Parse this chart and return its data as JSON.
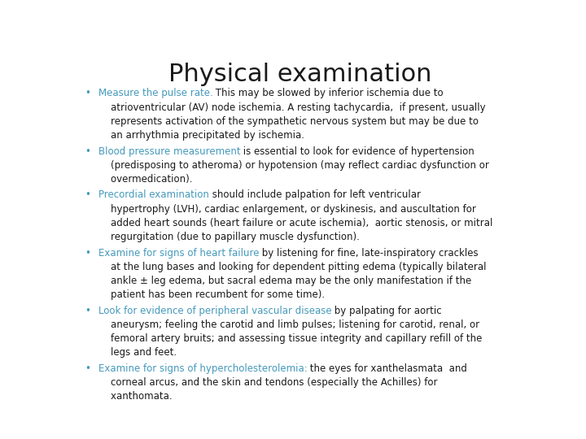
{
  "title": "Physical examination",
  "title_fontsize": 22,
  "title_color": "#1a1a1a",
  "bg_color": "#ffffff",
  "text_color": "#1a1a1a",
  "highlight_color": "#4499bb",
  "body_fontsize": 8.5,
  "font_family": "DejaVu Sans",
  "bullet_items": [
    {
      "highlight": "Measure the pulse rate.",
      "lines": [
        [
          [
            "Measure the pulse rate.",
            true
          ],
          [
            " This may be slowed by inferior ischemia due to",
            false
          ]
        ],
        [
          [
            "    atrioventricular (AV) node ischemia. A resting tachycardia,  if present, usually",
            false
          ]
        ],
        [
          [
            "    represents activation of the sympathetic nervous system but may be due to",
            false
          ]
        ],
        [
          [
            "    an arrhythmia precipitated by ischemia.",
            false
          ]
        ]
      ]
    },
    {
      "highlight": "Blood pressure measurement",
      "lines": [
        [
          [
            "Blood pressure measurement",
            true
          ],
          [
            " is essential to look for evidence of hypertension",
            false
          ]
        ],
        [
          [
            "    (predisposing to atheroma) or hypotension (may reflect cardiac dysfunction or",
            false
          ]
        ],
        [
          [
            "    overmedication).",
            false
          ]
        ]
      ]
    },
    {
      "highlight": "Precordial examination",
      "lines": [
        [
          [
            "Precordial examination",
            true
          ],
          [
            " should include palpation for left ventricular",
            false
          ]
        ],
        [
          [
            "    hypertrophy (LVH), cardiac enlargement, or dyskinesis, and auscultation for",
            false
          ]
        ],
        [
          [
            "    added heart sounds (heart failure or acute ischemia),  aortic stenosis, or mitral",
            false
          ]
        ],
        [
          [
            "    regurgitation (due to papillary muscle dysfunction).",
            false
          ]
        ]
      ]
    },
    {
      "highlight": "Examine for signs of heart failure",
      "lines": [
        [
          [
            "Examine for signs of heart failure",
            true
          ],
          [
            " by listening for fine, late-inspiratory crackles",
            false
          ]
        ],
        [
          [
            "    at the lung bases and looking for dependent pitting edema (typically bilateral",
            false
          ]
        ],
        [
          [
            "    ankle ± leg edema, but sacral edema may be the only manifestation if the",
            false
          ]
        ],
        [
          [
            "    patient has been recumbent for some time).",
            false
          ]
        ]
      ]
    },
    {
      "highlight": "Look for evidence of peripheral vascular disease",
      "lines": [
        [
          [
            "Look for evidence of peripheral vascular disease",
            true
          ],
          [
            " by palpating for aortic",
            false
          ]
        ],
        [
          [
            "    aneurysm; feeling the carotid and limb pulses; listening for carotid, renal, or",
            false
          ]
        ],
        [
          [
            "    femoral artery bruits; and assessing tissue integrity and capillary refill of the",
            false
          ]
        ],
        [
          [
            "    legs and feet.",
            false
          ]
        ]
      ]
    },
    {
      "highlight": "Examine for signs of hypercholesterolemia:",
      "lines": [
        [
          [
            "Examine for signs of hypercholesterolemia:",
            true
          ],
          [
            " the eyes for xanthelasmata  and",
            false
          ]
        ],
        [
          [
            "    corneal arcus, and the skin and tendons (especially the Achilles) for",
            false
          ]
        ],
        [
          [
            "    xanthomata.",
            false
          ]
        ]
      ]
    }
  ]
}
